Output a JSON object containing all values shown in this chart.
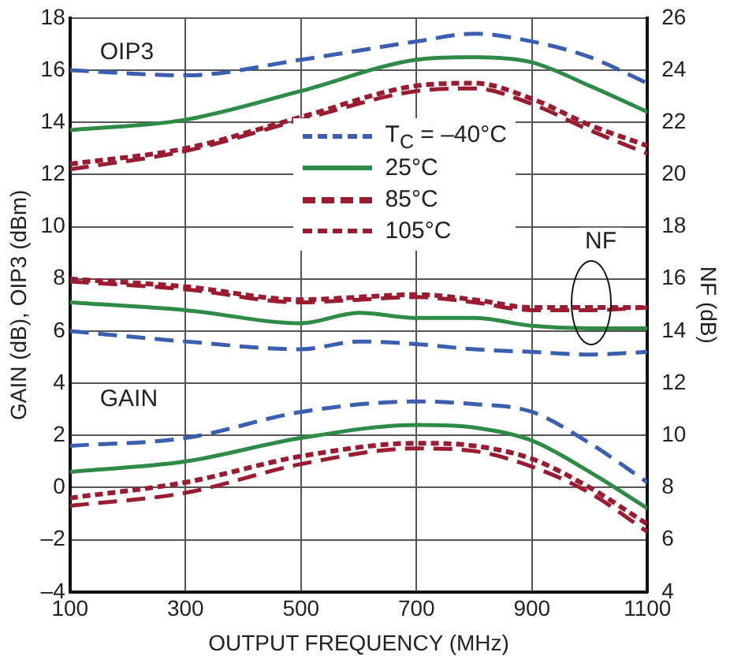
{
  "chart_data": {
    "type": "line",
    "xlabel": "OUTPUT FREQUENCY (MHz)",
    "ylabel": "GAIN (dB), OIP3 (dBm)",
    "y2label": "NF (dB)",
    "x": [
      100,
      300,
      500,
      700,
      800,
      900,
      1000,
      1100
    ],
    "xlim": [
      100,
      1100
    ],
    "xticks": [
      100,
      300,
      500,
      700,
      900,
      1100
    ],
    "ylim": [
      -4,
      18
    ],
    "yticks": [
      {
        "value": -4,
        "label": "–4"
      },
      {
        "value": -2,
        "label": "–2"
      },
      0,
      2,
      4,
      6,
      8,
      10,
      12,
      14,
      16,
      18
    ],
    "y2lim": [
      4,
      26
    ],
    "y2ticks": [
      4,
      6,
      8,
      10,
      12,
      14,
      16,
      18,
      20,
      22,
      24,
      26
    ],
    "grid": true,
    "legend": "center",
    "marker": "none",
    "annotations": [
      "OIP3",
      "NF",
      "GAIN"
    ],
    "series": [
      {
        "name": "T$_{C}$ = –40°C",
        "color": "#3a5fb0",
        "line_style": "dashed",
        "values": [
          16.0,
          15.8,
          16.4,
          17.1,
          17.4,
          17.1,
          16.5,
          15.5
        ]
      },
      {
        "name": "25°C",
        "color": "#2e8b47",
        "line_style": "solid",
        "values": [
          13.7,
          14.1,
          15.2,
          16.4,
          16.5,
          16.3,
          15.4,
          14.4
        ]
      },
      {
        "name": "85°C",
        "color": "#9b1b30",
        "line_style": "dotted",
        "values": [
          12.4,
          13.0,
          14.2,
          15.4,
          15.5,
          14.9,
          13.9,
          13.1
        ]
      },
      {
        "name": "105°C",
        "color": "#9b1b30",
        "line_style": "dashed",
        "values": [
          12.2,
          12.9,
          14.1,
          15.2,
          15.3,
          14.7,
          13.7,
          12.8
        ]
      },
      {
        "color": "#3a5fb0",
        "line_style": "dashed",
        "axis": "y2",
        "x": [
          100,
          300,
          500,
          600,
          700,
          800,
          900,
          1000,
          1100
        ],
        "values": [
          14.0,
          13.6,
          13.3,
          13.6,
          13.5,
          13.3,
          13.2,
          13.1,
          13.2
        ]
      },
      {
        "color": "#2e8b47",
        "line_style": "solid",
        "axis": "y2",
        "x": [
          100,
          300,
          500,
          600,
          700,
          800,
          900,
          1000,
          1100
        ],
        "values": [
          15.1,
          14.8,
          14.3,
          14.7,
          14.5,
          14.5,
          14.2,
          14.1,
          14.1
        ]
      },
      {
        "color": "#9b1b30",
        "line_style": "dotted",
        "axis": "y2",
        "x": [
          100,
          300,
          500,
          600,
          700,
          800,
          900,
          1000,
          1100
        ],
        "values": [
          16.0,
          15.7,
          15.2,
          15.3,
          15.4,
          15.2,
          14.9,
          14.9,
          14.9
        ]
      },
      {
        "color": "#9b1b30",
        "line_style": "dashed",
        "axis": "y2",
        "x": [
          100,
          300,
          500,
          600,
          700,
          800,
          900,
          1000,
          1100
        ],
        "values": [
          15.9,
          15.6,
          15.1,
          15.2,
          15.3,
          15.1,
          14.8,
          14.8,
          14.9
        ]
      },
      {
        "color": "#3a5fb0",
        "line_style": "dashed",
        "values": [
          1.6,
          1.9,
          2.9,
          3.3,
          3.2,
          2.9,
          1.7,
          0.2
        ]
      },
      {
        "color": "#2e8b47",
        "line_style": "solid",
        "values": [
          0.6,
          1.0,
          1.9,
          2.4,
          2.3,
          1.8,
          0.6,
          -0.8
        ]
      },
      {
        "color": "#9b1b30",
        "line_style": "dotted",
        "values": [
          -0.4,
          0.2,
          1.2,
          1.7,
          1.6,
          1.1,
          0.0,
          -1.4
        ]
      },
      {
        "color": "#9b1b30",
        "line_style": "dashed",
        "values": [
          -0.7,
          -0.2,
          0.9,
          1.5,
          1.4,
          0.8,
          -0.2,
          -1.7
        ]
      }
    ]
  }
}
